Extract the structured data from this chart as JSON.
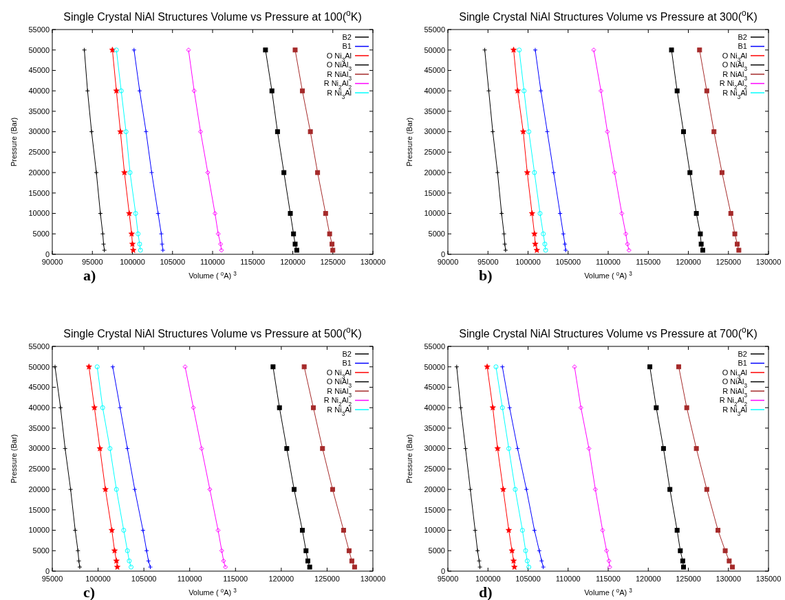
{
  "chart_data": [
    {
      "type": "line",
      "title": "Single Crystal NiAl Structures Volume vs Pressure at 100($^{o}$K)",
      "xlabel": "Volume ( $^{o}$A) $^{3}$",
      "ylabel": "Pressure (Bar)",
      "annotations": [
        "a)"
      ],
      "xlim": [
        90000,
        130000
      ],
      "xticks": [
        90000,
        95000,
        100000,
        105000,
        110000,
        115000,
        120000,
        125000,
        130000
      ],
      "ylim": [
        0,
        55000
      ],
      "yticks": [
        0,
        5000,
        10000,
        15000,
        20000,
        25000,
        30000,
        35000,
        40000,
        45000,
        50000,
        55000
      ],
      "grid": false,
      "legend": "top right",
      "line_style": "solid",
      "series": [
        {
          "name": "B2",
          "color": "#000000",
          "marker": "cross",
          "x": [
            94000,
            94400,
            94900,
            95500,
            96000,
            96300,
            96400,
            96500
          ],
          "values": [
            50000,
            40000,
            30000,
            20000,
            10000,
            5000,
            2500,
            1000
          ]
        },
        {
          "name": "B1",
          "color": "#0000ff",
          "marker": "cross",
          "x": [
            100200,
            100900,
            101700,
            102400,
            103200,
            103600,
            103700,
            103800
          ],
          "values": [
            50000,
            40000,
            30000,
            20000,
            10000,
            5000,
            2500,
            1000
          ]
        },
        {
          "name": "O Ni$_{3}$Al",
          "color": "#ff0000",
          "marker": "star",
          "x": [
            97500,
            98000,
            98500,
            99000,
            99600,
            99900,
            100000,
            100100
          ],
          "values": [
            50000,
            40000,
            30000,
            20000,
            10000,
            5000,
            2500,
            1000
          ]
        },
        {
          "name": "O NiAl$_{3}$",
          "color": "#000000",
          "marker": "square",
          "x": [
            116600,
            117400,
            118100,
            118900,
            119700,
            120100,
            120300,
            120500
          ],
          "values": [
            50000,
            40000,
            30000,
            20000,
            10000,
            5000,
            2500,
            1000
          ]
        },
        {
          "name": "R NiAl$_{3}$",
          "color": "#a52a2a",
          "marker": "square",
          "x": [
            120300,
            121200,
            122200,
            123100,
            124100,
            124600,
            124900,
            125000
          ],
          "values": [
            50000,
            40000,
            30000,
            20000,
            10000,
            5000,
            2500,
            1000
          ]
        },
        {
          "name": "R Ni$_{2}$Al$_{2}$",
          "color": "#ff00ff",
          "marker": "diamond",
          "x": [
            107000,
            107700,
            108500,
            109400,
            110300,
            110700,
            111000,
            111100
          ],
          "values": [
            50000,
            40000,
            30000,
            20000,
            10000,
            5000,
            2500,
            1000
          ]
        },
        {
          "name": "R Ni$_{3}$Al",
          "color": "#00ffff",
          "marker": "circle",
          "x": [
            98000,
            98600,
            99200,
            99700,
            100400,
            100700,
            100900,
            101000
          ],
          "values": [
            50000,
            40000,
            30000,
            20000,
            10000,
            5000,
            2500,
            1000
          ]
        }
      ]
    },
    {
      "type": "line",
      "title": "Single Crystal NiAl Structures Volume vs Pressure at 300($^{o}$K)",
      "xlabel": "Volume ( $^{o}$A) $^{3}$",
      "ylabel": "Pressure (Bar)",
      "annotations": [
        "b)"
      ],
      "xlim": [
        90000,
        130000
      ],
      "xticks": [
        90000,
        95000,
        100000,
        105000,
        110000,
        115000,
        120000,
        125000,
        130000
      ],
      "ylim": [
        0,
        55000
      ],
      "yticks": [
        0,
        5000,
        10000,
        15000,
        20000,
        25000,
        30000,
        35000,
        40000,
        45000,
        50000,
        55000
      ],
      "grid": false,
      "legend": "top right",
      "line_style": "solid",
      "series": [
        {
          "name": "B2",
          "color": "#000000",
          "marker": "cross",
          "x": [
            94600,
            95100,
            95600,
            96200,
            96700,
            97000,
            97100,
            97200
          ],
          "values": [
            50000,
            40000,
            30000,
            20000,
            10000,
            5000,
            2500,
            1000
          ]
        },
        {
          "name": "B1",
          "color": "#0000ff",
          "marker": "cross",
          "x": [
            100900,
            101600,
            102400,
            103200,
            104000,
            104400,
            104600,
            104700
          ],
          "values": [
            50000,
            40000,
            30000,
            20000,
            10000,
            5000,
            2500,
            1000
          ]
        },
        {
          "name": "O Ni$_{3}$Al",
          "color": "#ff0000",
          "marker": "star",
          "x": [
            98200,
            98700,
            99400,
            99900,
            100500,
            100800,
            100900,
            101100
          ],
          "values": [
            50000,
            40000,
            30000,
            20000,
            10000,
            5000,
            2500,
            1000
          ]
        },
        {
          "name": "O NiAl$_{3}$",
          "color": "#000000",
          "marker": "square",
          "x": [
            117900,
            118600,
            119400,
            120200,
            121000,
            121500,
            121600,
            121800
          ],
          "values": [
            50000,
            40000,
            30000,
            20000,
            10000,
            5000,
            2500,
            1000
          ]
        },
        {
          "name": "R NiAl$_{3}$",
          "color": "#a52a2a",
          "marker": "square",
          "x": [
            121400,
            122300,
            123200,
            124200,
            125300,
            125800,
            126100,
            126300
          ],
          "values": [
            50000,
            40000,
            30000,
            20000,
            10000,
            5000,
            2500,
            1000
          ]
        },
        {
          "name": "R Ni$_{2}$Al$_{2}$",
          "color": "#ff00ff",
          "marker": "diamond",
          "x": [
            108200,
            109100,
            109900,
            110800,
            111700,
            112200,
            112400,
            112600
          ],
          "values": [
            50000,
            40000,
            30000,
            20000,
            10000,
            5000,
            2500,
            1000
          ]
        },
        {
          "name": "R Ni$_{3}$Al",
          "color": "#00ffff",
          "marker": "circle",
          "x": [
            98900,
            99500,
            100100,
            100800,
            101500,
            101900,
            102100,
            102200
          ],
          "values": [
            50000,
            40000,
            30000,
            20000,
            10000,
            5000,
            2500,
            1000
          ]
        }
      ]
    },
    {
      "type": "line",
      "title": "Single Crystal NiAl Structures Volume vs Pressure at 500($^{o}$K)",
      "xlabel": "Volume ( $^{o}$A) $^{3}$",
      "ylabel": "Pressure (Bar)",
      "annotations": [
        "c)"
      ],
      "xlim": [
        95000,
        130000
      ],
      "xticks": [
        95000,
        100000,
        105000,
        110000,
        115000,
        120000,
        125000,
        130000
      ],
      "ylim": [
        0,
        55000
      ],
      "yticks": [
        0,
        5000,
        10000,
        15000,
        20000,
        25000,
        30000,
        35000,
        40000,
        45000,
        50000,
        55000
      ],
      "grid": false,
      "legend": "top right",
      "line_style": "solid",
      "series": [
        {
          "name": "B2",
          "color": "#000000",
          "marker": "cross",
          "x": [
            95300,
            95900,
            96400,
            97000,
            97500,
            97800,
            97900,
            98000
          ],
          "values": [
            50000,
            40000,
            30000,
            20000,
            10000,
            5000,
            2500,
            1000
          ]
        },
        {
          "name": "B1",
          "color": "#0000ff",
          "marker": "cross",
          "x": [
            101600,
            102400,
            103200,
            104000,
            104900,
            105300,
            105500,
            105700
          ],
          "values": [
            50000,
            40000,
            30000,
            20000,
            10000,
            5000,
            2500,
            1000
          ]
        },
        {
          "name": "O Ni$_{3}$Al",
          "color": "#ff0000",
          "marker": "star",
          "x": [
            99000,
            99600,
            100200,
            100800,
            101500,
            101800,
            102000,
            102100
          ],
          "values": [
            50000,
            40000,
            30000,
            20000,
            10000,
            5000,
            2500,
            1000
          ]
        },
        {
          "name": "O NiAl$_{3}$",
          "color": "#000000",
          "marker": "square",
          "x": [
            119100,
            119800,
            120600,
            121400,
            122300,
            122700,
            122900,
            123100
          ],
          "values": [
            50000,
            40000,
            30000,
            20000,
            10000,
            5000,
            2500,
            1000
          ]
        },
        {
          "name": "R NiAl$_{3}$",
          "color": "#a52a2a",
          "marker": "square",
          "x": [
            122500,
            123500,
            124500,
            125600,
            126800,
            127400,
            127700,
            128000
          ],
          "values": [
            50000,
            40000,
            30000,
            20000,
            10000,
            5000,
            2500,
            1000
          ]
        },
        {
          "name": "R Ni$_{2}$Al$_{2}$",
          "color": "#ff00ff",
          "marker": "diamond",
          "x": [
            109500,
            110400,
            111300,
            112200,
            113100,
            113500,
            113700,
            113900
          ],
          "values": [
            50000,
            40000,
            30000,
            20000,
            10000,
            5000,
            2500,
            1000
          ]
        },
        {
          "name": "R Ni$_{3}$Al",
          "color": "#00ffff",
          "marker": "circle",
          "x": [
            99900,
            100500,
            101300,
            102000,
            102800,
            103200,
            103400,
            103600
          ],
          "values": [
            50000,
            40000,
            30000,
            20000,
            10000,
            5000,
            2500,
            1000
          ]
        }
      ]
    },
    {
      "type": "line",
      "title": "Single Crystal NiAl Structures Volume vs Pressure at 700($^{o}$K)",
      "xlabel": "Volume ( $^{o}$A) $^{3}$",
      "ylabel": "Pressure (Bar)",
      "annotations": [
        "d)"
      ],
      "xlim": [
        95000,
        135000
      ],
      "xticks": [
        95000,
        100000,
        105000,
        110000,
        115000,
        120000,
        125000,
        130000,
        135000
      ],
      "ylim": [
        0,
        55000
      ],
      "yticks": [
        0,
        5000,
        10000,
        15000,
        20000,
        25000,
        30000,
        35000,
        40000,
        45000,
        50000,
        55000
      ],
      "grid": false,
      "legend": "top right",
      "line_style": "solid",
      "series": [
        {
          "name": "B2",
          "color": "#000000",
          "marker": "cross",
          "x": [
            96100,
            96600,
            97200,
            97800,
            98400,
            98700,
            98900,
            99000
          ],
          "values": [
            50000,
            40000,
            30000,
            20000,
            10000,
            5000,
            2500,
            1000
          ]
        },
        {
          "name": "B1",
          "color": "#0000ff",
          "marker": "cross",
          "x": [
            101800,
            102700,
            103700,
            104800,
            105800,
            106400,
            106700,
            106900
          ],
          "values": [
            50000,
            40000,
            30000,
            20000,
            10000,
            5000,
            2500,
            1000
          ]
        },
        {
          "name": "O Ni$_{3}$Al",
          "color": "#ff0000",
          "marker": "star",
          "x": [
            99900,
            100600,
            101200,
            101900,
            102600,
            103000,
            103200,
            103300
          ],
          "values": [
            50000,
            40000,
            30000,
            20000,
            10000,
            5000,
            2500,
            1000
          ]
        },
        {
          "name": "O NiAl$_{3}$",
          "color": "#000000",
          "marker": "square",
          "x": [
            120200,
            121000,
            121900,
            122700,
            123600,
            124000,
            124300,
            124400
          ],
          "values": [
            50000,
            40000,
            30000,
            20000,
            10000,
            5000,
            2500,
            1000
          ]
        },
        {
          "name": "R NiAl$_{3}$",
          "color": "#a52a2a",
          "marker": "square",
          "x": [
            123800,
            124800,
            126000,
            127300,
            128700,
            129600,
            130100,
            130500
          ],
          "values": [
            50000,
            40000,
            30000,
            20000,
            10000,
            5000,
            2500,
            1000
          ]
        },
        {
          "name": "R Ni$_{2}$Al$_{2}$",
          "color": "#ff00ff",
          "marker": "diamond",
          "x": [
            110800,
            111600,
            112600,
            113400,
            114300,
            114800,
            115100,
            115200
          ],
          "values": [
            50000,
            40000,
            30000,
            20000,
            10000,
            5000,
            2500,
            1000
          ]
        },
        {
          "name": "R Ni$_{3}$Al",
          "color": "#00ffff",
          "marker": "circle",
          "x": [
            101000,
            101800,
            102600,
            103400,
            104300,
            104700,
            104900,
            105100
          ],
          "values": [
            50000,
            40000,
            30000,
            20000,
            10000,
            5000,
            2500,
            1000
          ]
        }
      ]
    }
  ]
}
